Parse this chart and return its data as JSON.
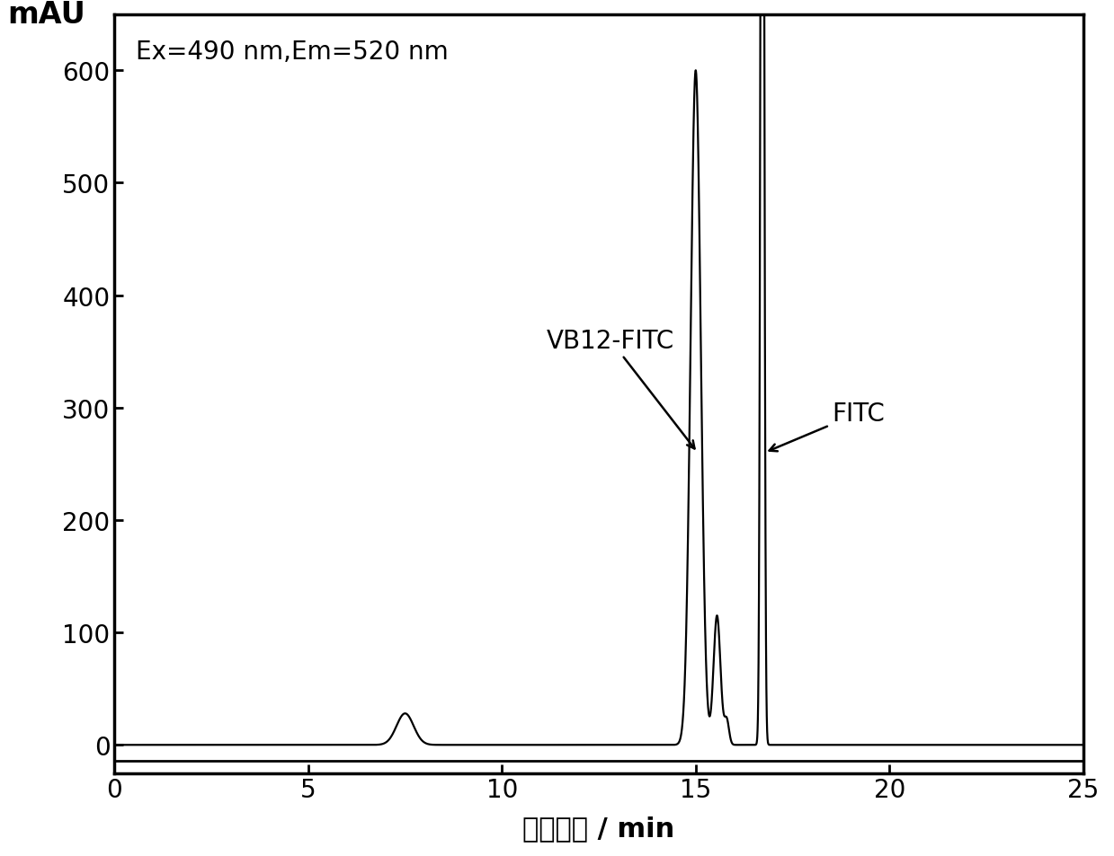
{
  "title": "",
  "xlabel": "流出时间 / min",
  "ylabel": "mAU",
  "annotation": "Ex=490 nm,Em=520 nm",
  "xlim": [
    0,
    25
  ],
  "ylim": [
    -25,
    650
  ],
  "yticks": [
    0,
    100,
    200,
    300,
    400,
    500,
    600
  ],
  "xticks": [
    0,
    5,
    10,
    15,
    20,
    25
  ],
  "label_vb12": "VB12-FITC",
  "label_fitc": "FITC",
  "line_color": "#000000",
  "line_width": 1.6,
  "background_color": "#ffffff",
  "font_size_label": 22,
  "font_size_tick": 20,
  "font_size_annot": 20,
  "font_size_ylabel": 24
}
